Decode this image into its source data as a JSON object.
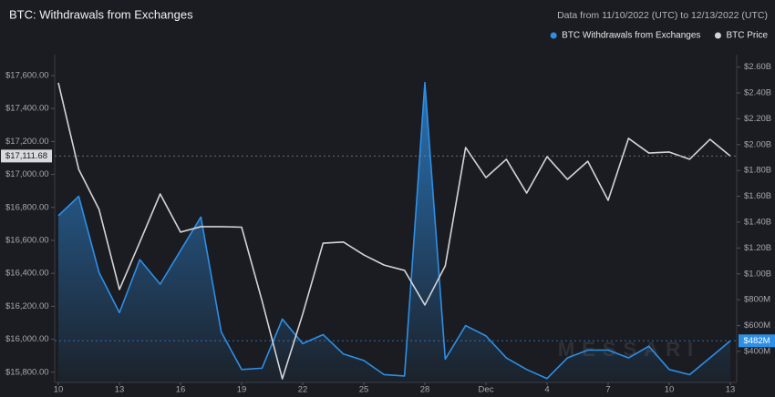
{
  "chart_data": {
    "type": "line",
    "title": "BTC: Withdrawals from Exchanges",
    "subtitle": "Data from 11/10/2022 (UTC) to 12/13/2022 (UTC)",
    "watermark": "MESSARI",
    "legend": "top-right",
    "categories": [
      "10",
      null,
      null,
      "13",
      null,
      null,
      "16",
      null,
      null,
      "19",
      null,
      null,
      "22",
      null,
      null,
      "25",
      null,
      null,
      "28",
      null,
      null,
      "Dec",
      null,
      null,
      "4",
      null,
      null,
      "7",
      null,
      null,
      "10",
      null,
      null,
      "13"
    ],
    "series": [
      {
        "name": "BTC Withdrawals from Exchanges",
        "color": "#2d8fe6",
        "axis": "y2",
        "fill": true,
        "values": [
          1450,
          1600,
          1010,
          700,
          1110,
          920,
          1180,
          1440,
          550,
          260,
          270,
          650,
          460,
          530,
          380,
          330,
          220,
          210,
          2480,
          340,
          600,
          520,
          350,
          260,
          190,
          350,
          410,
          410,
          350,
          440,
          260,
          220,
          350,
          482
        ]
      },
      {
        "name": "BTC Price",
        "color": "#d4d4d8",
        "axis": "y",
        "values": [
          17556,
          17031,
          16788,
          16302,
          16589,
          16882,
          16650,
          16683,
          16683,
          16680,
          16235,
          15760,
          16152,
          16583,
          16590,
          16512,
          16450,
          16418,
          16208,
          16445,
          17163,
          16981,
          17092,
          16887,
          17108,
          16970,
          17080,
          16843,
          17219,
          17130,
          17136,
          17092,
          17213,
          17111.68
        ]
      }
    ],
    "ylim": [
      15738,
      17727
    ],
    "yticks": [
      {
        "value": 15800,
        "label": "$15,800.00"
      },
      {
        "value": 16000,
        "label": "$16,000.00"
      },
      {
        "value": 16200,
        "label": "$16,200.00"
      },
      {
        "value": 16400,
        "label": "$16,400.00"
      },
      {
        "value": 16600,
        "label": "$16,600.00"
      },
      {
        "value": 16800,
        "label": "$16,800.00"
      },
      {
        "value": 17000,
        "label": "$17,000.00"
      },
      {
        "value": 17200,
        "label": "$17,200.00"
      },
      {
        "value": 17400,
        "label": "$17,400.00"
      },
      {
        "value": 17600,
        "label": "$17,600.00"
      }
    ],
    "y2lim": [
      160,
      2696
    ],
    "y2ticks": [
      {
        "value": 400,
        "label": "$400M"
      },
      {
        "value": 600,
        "label": "$600M"
      },
      {
        "value": 800,
        "label": "$800M"
      },
      {
        "value": 1000,
        "label": "$1.00B"
      },
      {
        "value": 1200,
        "label": "$1.20B"
      },
      {
        "value": 1400,
        "label": "$1.40B"
      },
      {
        "value": 1600,
        "label": "$1.60B"
      },
      {
        "value": 1800,
        "label": "$1.80B"
      },
      {
        "value": 2000,
        "label": "$2.00B"
      },
      {
        "value": 2200,
        "label": "$2.20B"
      },
      {
        "value": 2400,
        "label": "$2.40B"
      },
      {
        "value": 2600,
        "label": "$2.60B"
      }
    ],
    "annotations": [
      {
        "axis": "y",
        "value": 17111.68,
        "label": "$17,111.68"
      },
      {
        "axis": "y2",
        "value": 482,
        "label": "$482M"
      }
    ]
  }
}
